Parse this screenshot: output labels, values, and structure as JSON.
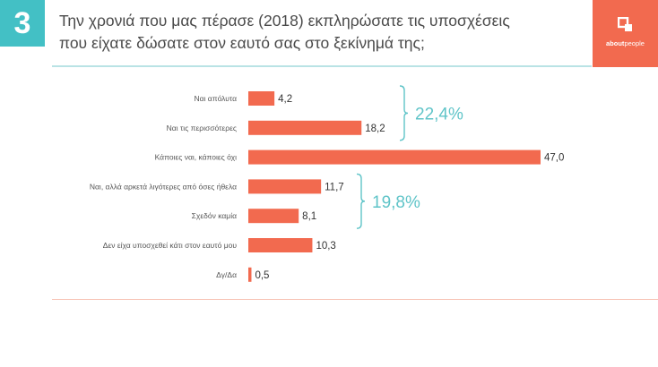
{
  "slide_number": "3",
  "title_lines": [
    "Την χρονιά που μας πέρασε (2018) εκπληρώσατε τις υποσχέσεις",
    "που είχατε δώσατε στον εαυτό σας στο ξεκίνημά της;"
  ],
  "brand": {
    "name_bold": "about",
    "name_rest": "people",
    "background": "#f26a4f"
  },
  "colors": {
    "bar": "#f26a4f",
    "accent": "#43c0c5",
    "group_label": "#5fc4c8"
  },
  "chart_data": {
    "type": "bar",
    "orientation": "horizontal",
    "title": "Την χρονιά που μας πέρασε (2018) εκπληρώσατε τις υποσχέσεις που είχατε δώσατε στον εαυτό σας στο ξεκίνημά της;",
    "xlim": [
      0,
      47.0
    ],
    "grid": false,
    "categories": [
      "Ναι απόλυτα",
      "Ναι τις περισσότερες",
      "Κάποιες ναι, κάποιες όχι",
      "Ναι, αλλά αρκετά λιγότερες από όσες ήθελα",
      "Σχεδόν καμία",
      "Δεν είχα υποσχεθεί κάτι στον εαυτό μου",
      "Δγ/Δα"
    ],
    "values": [
      4.2,
      18.2,
      47.0,
      11.7,
      8.1,
      10.3,
      0.5
    ],
    "value_labels": [
      "4,2",
      "18,2",
      "47,0",
      "11,7",
      "8,1",
      "10,3",
      "0,5"
    ],
    "groups": [
      {
        "label": "22,4%",
        "value": 22.4,
        "from": 0,
        "to": 1
      },
      {
        "label": "19,8%",
        "value": 19.8,
        "from": 3,
        "to": 4
      }
    ]
  }
}
